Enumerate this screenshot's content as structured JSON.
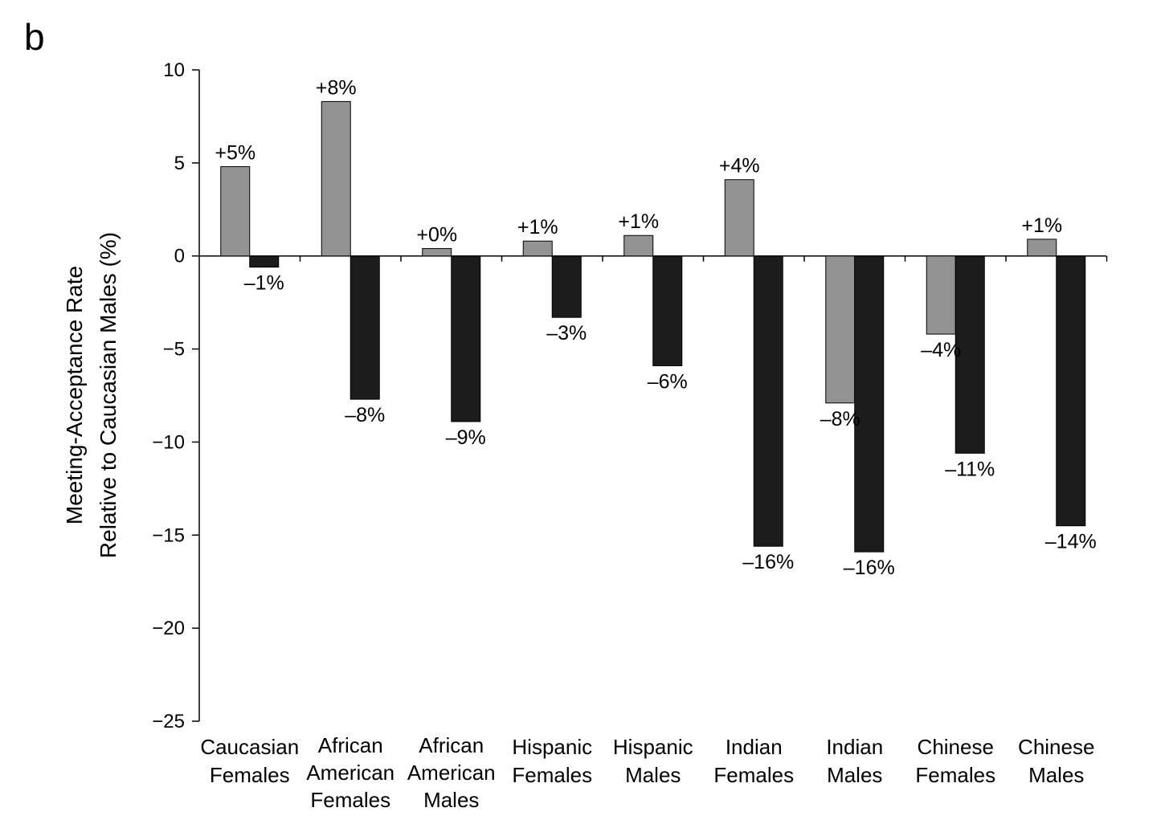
{
  "panel_letter": "b",
  "colors": {
    "series_1": "#939393",
    "series_2": "#1c1c1c",
    "axis": "#000000",
    "bar_stroke": "#000000"
  },
  "chart_data": {
    "type": "bar",
    "title": "",
    "ylabel_lines": [
      "Meeting-Acceptance Rate",
      "Relative to Caucasian Males (%)"
    ],
    "xlabel": "",
    "ylim": [
      -25,
      10
    ],
    "yticks": [
      10,
      5,
      0,
      -5,
      -10,
      -15,
      -20,
      -25
    ],
    "ytick_labels": [
      "10",
      "5",
      "0",
      "−5",
      "−10",
      "−15",
      "−20",
      "−25"
    ],
    "grid": false,
    "legend": "none",
    "categories": [
      [
        "Caucasian",
        "Females"
      ],
      [
        "African",
        "American",
        "Females"
      ],
      [
        "African",
        "American",
        "Males"
      ],
      [
        "Hispanic",
        "Females"
      ],
      [
        "Hispanic",
        "Males"
      ],
      [
        "Indian",
        "Females"
      ],
      [
        "Indian",
        "Males"
      ],
      [
        "Chinese",
        "Females"
      ],
      [
        "Chinese",
        "Males"
      ]
    ],
    "series": [
      {
        "values": [
          4.8,
          8.3,
          0.4,
          0.8,
          1.1,
          4.1,
          -7.9,
          -4.2,
          0.9
        ],
        "labels": [
          "+5%",
          "+8%",
          "+0%",
          "+1%",
          "+1%",
          "+4%",
          "–8%",
          "–4%",
          "+1%"
        ]
      },
      {
        "values": [
          -0.6,
          -7.7,
          -8.9,
          -3.3,
          -5.9,
          -15.6,
          -15.9,
          -10.6,
          -14.5
        ],
        "labels": [
          "–1%",
          "–8%",
          "–9%",
          "–3%",
          "–6%",
          "–16%",
          "–16%",
          "–11%",
          "–14%"
        ]
      }
    ]
  }
}
